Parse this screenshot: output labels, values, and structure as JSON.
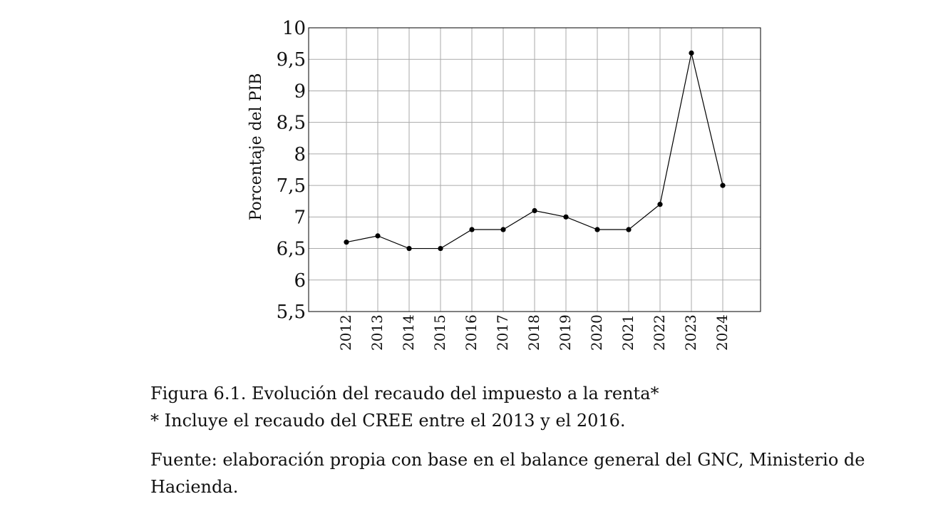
{
  "chart_data": {
    "type": "line",
    "title": "",
    "xlabel": "",
    "ylabel": "Porcentaje del PIB",
    "ylim": [
      5.5,
      10
    ],
    "yticks": [
      "5,5",
      "6",
      "6,5",
      "7",
      "7,5",
      "8",
      "8,5",
      "9",
      "9,5",
      "10"
    ],
    "ytick_values": [
      5.5,
      6,
      6.5,
      7,
      7.5,
      8,
      8.5,
      9,
      9.5,
      10
    ],
    "categories": [
      "2012",
      "2013",
      "2014",
      "2015",
      "2016",
      "2017",
      "2018",
      "2019",
      "2020",
      "2021",
      "2022",
      "2023",
      "2024"
    ],
    "series": [
      {
        "values": [
          6.6,
          6.7,
          6.5,
          6.5,
          6.8,
          6.8,
          7.1,
          7.0,
          6.8,
          6.8,
          7.2,
          9.6,
          7.5
        ]
      }
    ],
    "grid": true,
    "colors": {
      "line": "#000000",
      "grid": "#aaaaaa",
      "frame": "#000000"
    }
  },
  "caption": {
    "figure": "Figura 6.1. Evolución del recaudo del impuesto a la renta*",
    "note": "* Incluye el recaudo del CREE entre el 2013 y el 2016.",
    "source": "Fuente: elaboración propia con base en el balance general del GNC, Ministerio de Hacienda."
  }
}
